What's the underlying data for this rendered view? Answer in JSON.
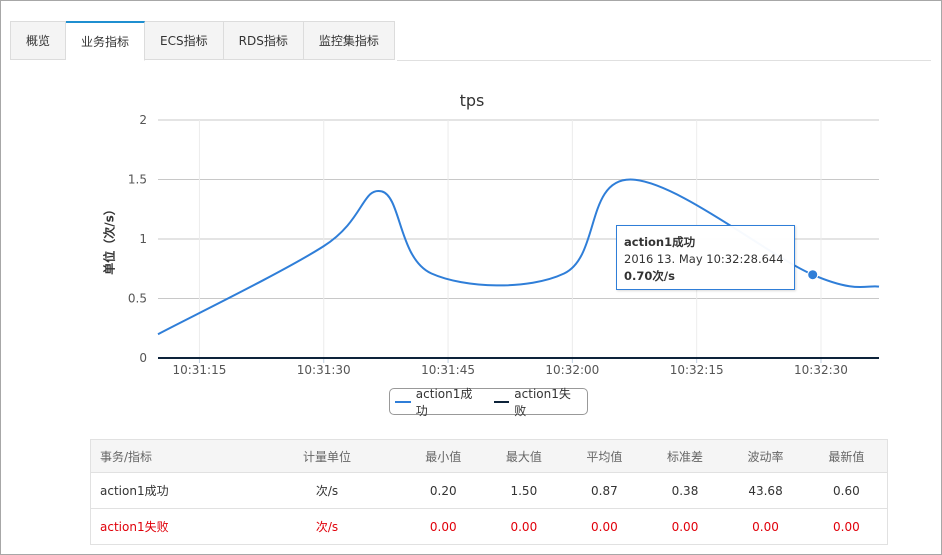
{
  "tabs": [
    {
      "label": "概览",
      "active": false
    },
    {
      "label": "业务指标",
      "active": true
    },
    {
      "label": "ECS指标",
      "active": false
    },
    {
      "label": "RDS指标",
      "active": false
    },
    {
      "label": "监控集指标",
      "active": false
    }
  ],
  "chart_data": {
    "type": "line",
    "title": "tps",
    "ylabel": "单位（次/s）",
    "ylim": [
      0,
      2
    ],
    "y_ticks": [
      "0",
      "0.5",
      "1",
      "1.5",
      "2"
    ],
    "x_tick_labels": [
      "10:31:15",
      "10:31:30",
      "10:31:45",
      "10:32:00",
      "10:32:15",
      "10:32:30"
    ],
    "grid": true,
    "legend_position": "bottom-center",
    "series": [
      {
        "name": "action1成功",
        "color": "#2f7ed8",
        "points": [
          [
            "10:31:10",
            0.2
          ],
          [
            "10:31:30",
            0.94
          ],
          [
            "10:31:37",
            1.4
          ],
          [
            "10:31:43",
            0.71
          ],
          [
            "10:31:59",
            0.71
          ],
          [
            "10:32:07",
            1.5
          ],
          [
            "10:32:29",
            0.7
          ],
          [
            "10:32:37",
            0.6
          ]
        ]
      },
      {
        "name": "action1失败",
        "color": "#0d233a",
        "points": [
          [
            "10:31:10",
            0.0
          ],
          [
            "10:32:37",
            0.0
          ]
        ]
      }
    ],
    "tooltip": {
      "series": "action1成功",
      "time": "2016 13. May 10:32:28.644",
      "value": "0.70次/s",
      "x": "10:32:29",
      "y": 0.7
    }
  },
  "table": {
    "headers": [
      "事务/指标",
      "计量单位",
      "最小值",
      "最大值",
      "平均值",
      "标准差",
      "波动率",
      "最新值"
    ],
    "rows": [
      {
        "cells": [
          "action1成功",
          "次/s",
          "0.20",
          "1.50",
          "0.87",
          "0.38",
          "43.68",
          "0.60"
        ],
        "status": "ok"
      },
      {
        "cells": [
          "action1失败",
          "次/s",
          "0.00",
          "0.00",
          "0.00",
          "0.00",
          "0.00",
          "0.00"
        ],
        "status": "fail"
      }
    ]
  }
}
